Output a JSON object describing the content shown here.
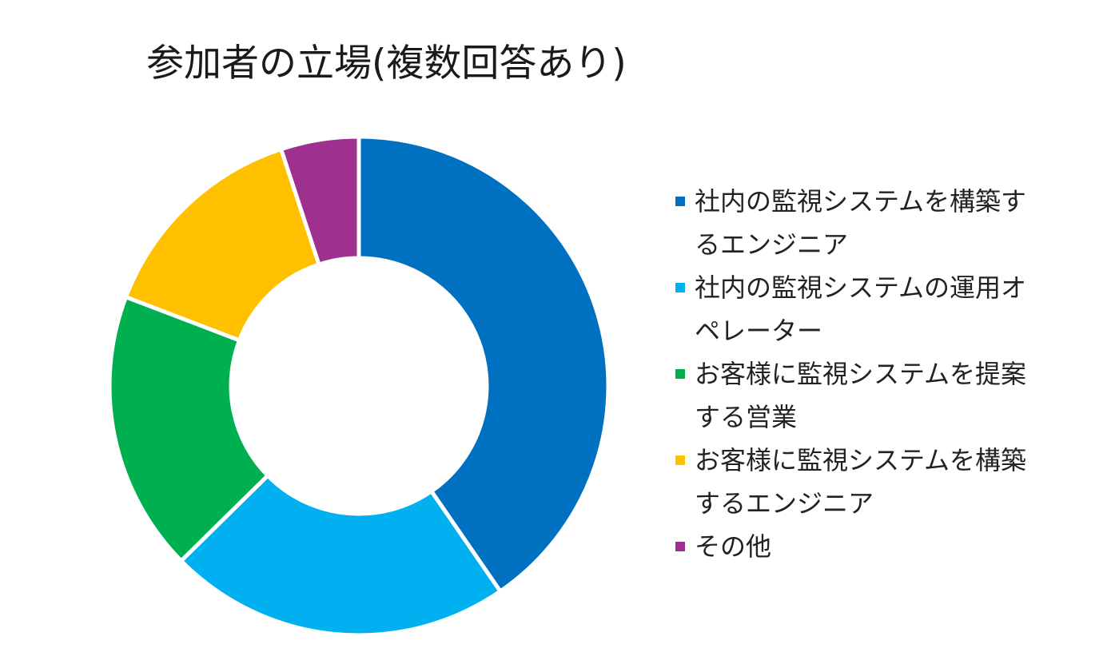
{
  "chart_data": {
    "type": "pie",
    "title": "参加者の立場(複数回答あり)",
    "donut": true,
    "categories": [
      "社内の監視システムを構築するエンジニア",
      "社内の監視システムの運用オペレーター",
      "お客様に監視システムを提案する営業",
      "お客様に監視システムを構築するエンジニア",
      "その他"
    ],
    "values": [
      40,
      22,
      18,
      14,
      5
    ],
    "colors": [
      "#0070C0",
      "#00B0F0",
      "#00B050",
      "#FFC000",
      "#A0308F"
    ],
    "legend_position": "right"
  }
}
